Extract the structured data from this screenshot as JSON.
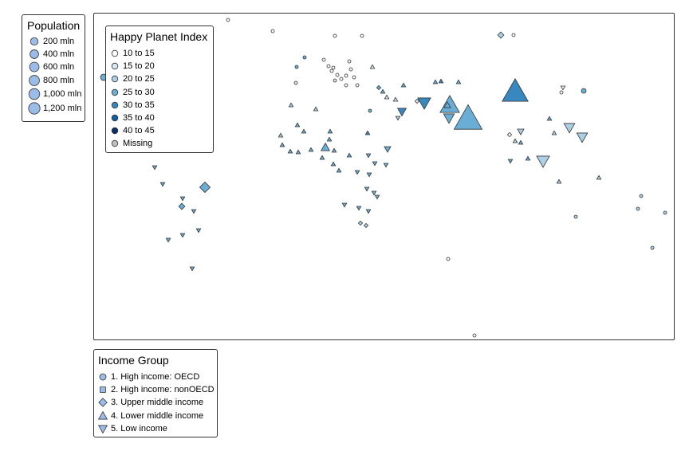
{
  "population_legend": {
    "title": "Population",
    "items": [
      {
        "label": "200 mln",
        "value": 200
      },
      {
        "label": "400 mln",
        "value": 400
      },
      {
        "label": "600 mln",
        "value": 600
      },
      {
        "label": "800 mln",
        "value": 800
      },
      {
        "label": "1,000 mln",
        "value": 1000
      },
      {
        "label": "1,200 mln",
        "value": 1200
      }
    ]
  },
  "hpi_legend": {
    "title": "Happy Planet Index",
    "items": [
      {
        "label": "10 to 15",
        "color": "#f7fbff"
      },
      {
        "label": "15 to 20",
        "color": "#d6e6f4"
      },
      {
        "label": "20 to 25",
        "color": "#abcfe5"
      },
      {
        "label": "25 to 30",
        "color": "#6aaed6"
      },
      {
        "label": "30 to 35",
        "color": "#3787c0"
      },
      {
        "label": "35 to 40",
        "color": "#105ba4"
      },
      {
        "label": "40 to 45",
        "color": "#08306b"
      },
      {
        "label": "Missing",
        "color": "#bfbfbf"
      }
    ]
  },
  "income_legend": {
    "title": "Income Group",
    "items": [
      {
        "label": "1. High income: OECD",
        "shape": "circle"
      },
      {
        "label": "2. High income: nonOECD",
        "shape": "square"
      },
      {
        "label": "3. Upper middle income",
        "shape": "diamond"
      },
      {
        "label": "4. Lower middle income",
        "shape": "triangle-up"
      },
      {
        "label": "5. Low income",
        "shape": "triangle-down"
      }
    ],
    "symbol_color": "#9bbce8"
  }
}
